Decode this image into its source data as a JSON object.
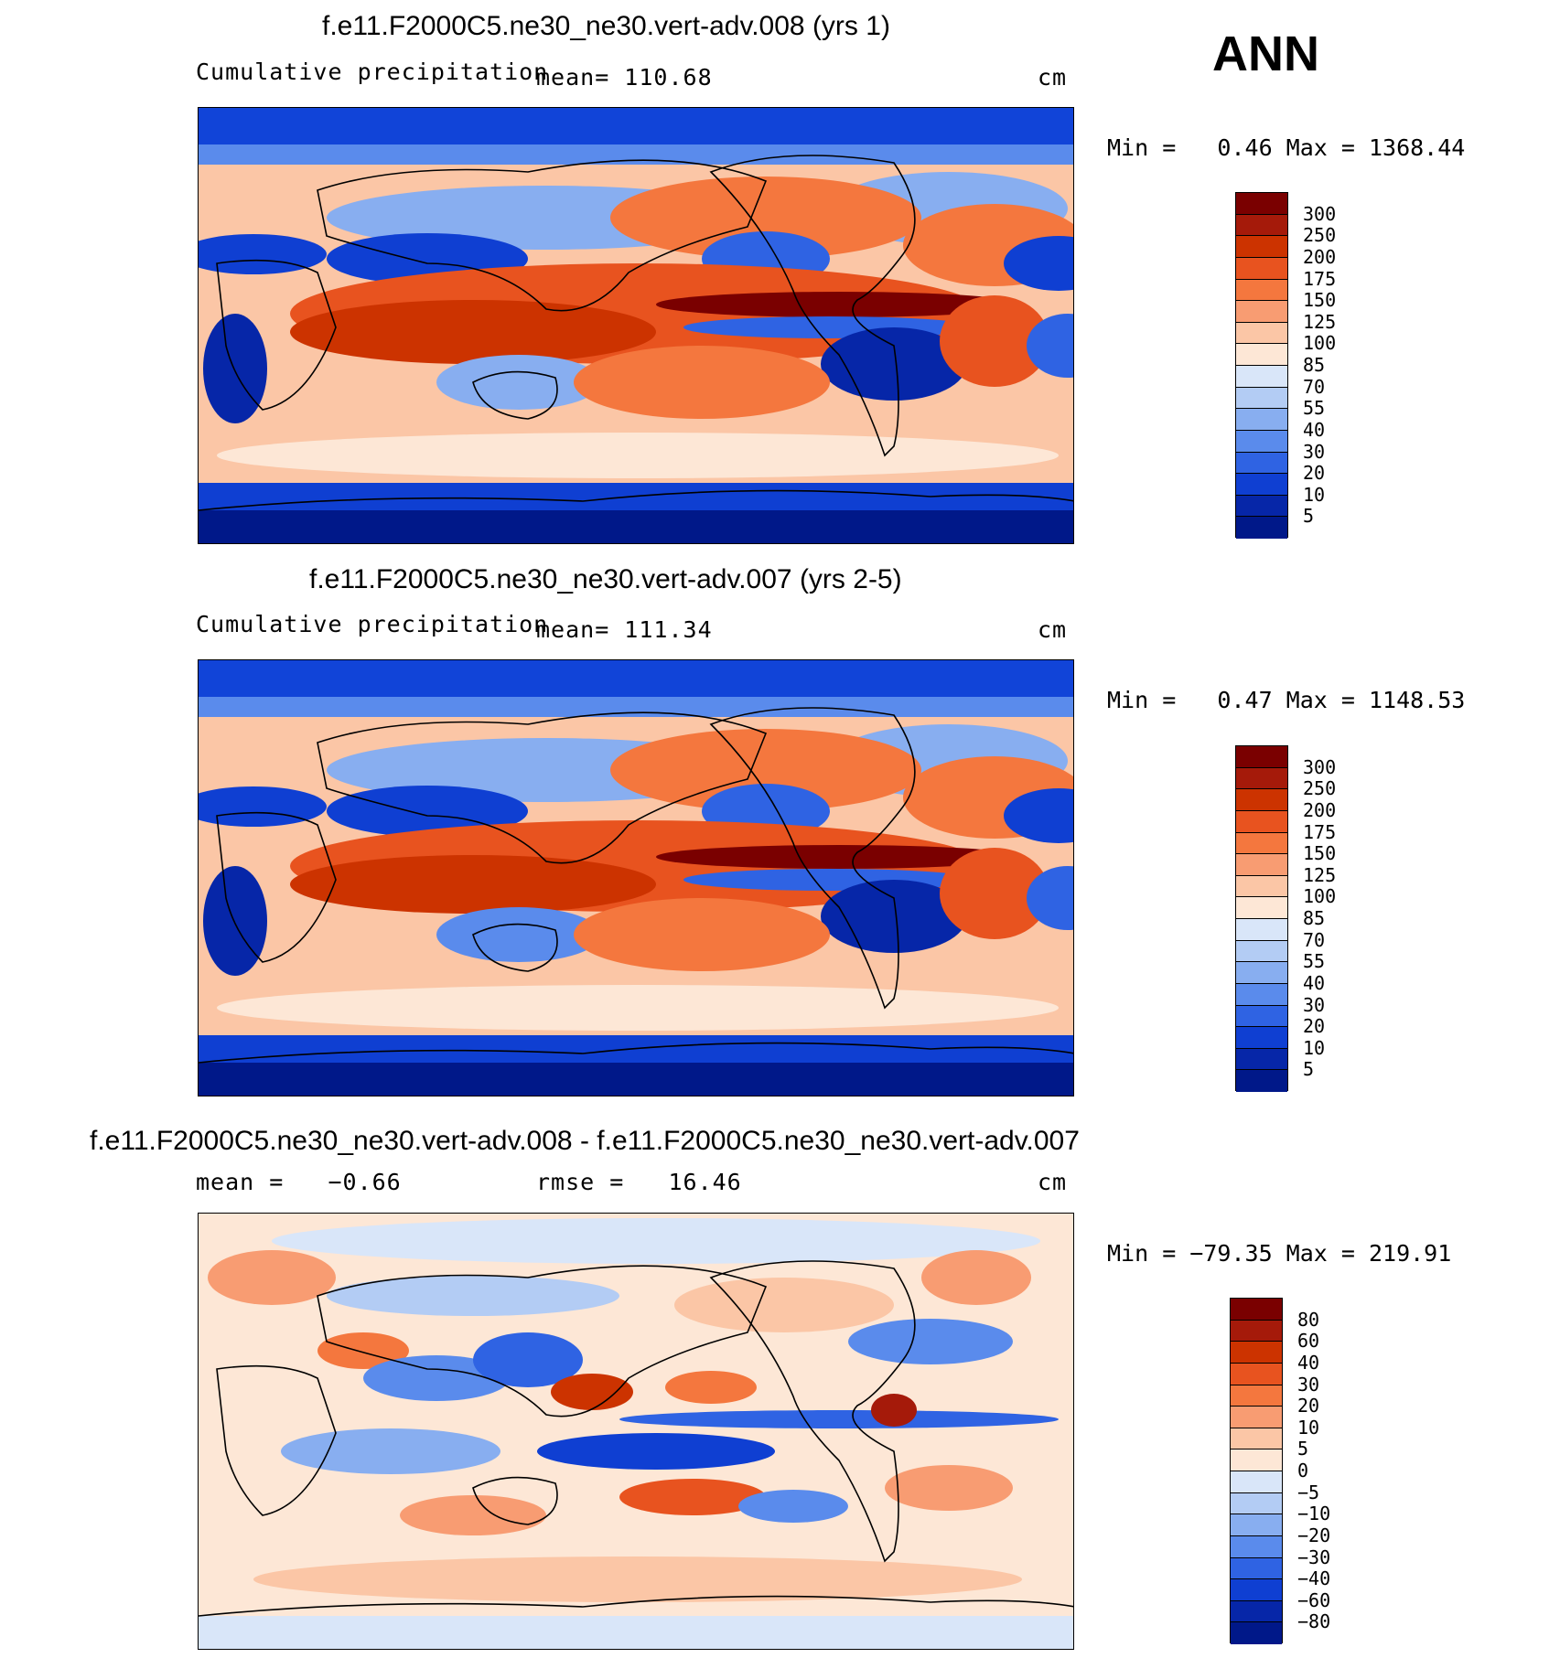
{
  "season": "ANN",
  "panels": [
    {
      "title": "f.e11.F2000C5.ne30_ne30.vert-adv.008 (yrs 1)",
      "left_label": "Cumulative precipitation",
      "center_label": "mean= 110.68",
      "right_label": "cm",
      "minmax": "Min =   0.46 Max = 1368.44",
      "colorbar_labels": [
        "300",
        "250",
        "200",
        "175",
        "150",
        "125",
        "100",
        "85",
        "70",
        "55",
        "40",
        "30",
        "20",
        "10",
        "5"
      ],
      "colors": [
        "#7a0000",
        "#a51a0a",
        "#cc3300",
        "#e8531f",
        "#f4773e",
        "#f89c72",
        "#fbc6a6",
        "#fde7d6",
        "#d9e6f9",
        "#b3ccf4",
        "#88aef0",
        "#5a8bec",
        "#2f63e3",
        "#0f3fd2",
        "#0626a8",
        "#001889"
      ]
    },
    {
      "title": "f.e11.F2000C5.ne30_ne30.vert-adv.007 (yrs 2-5)",
      "left_label": "Cumulative precipitation",
      "center_label": "mean= 111.34",
      "right_label": "cm",
      "minmax": "Min =   0.47 Max = 1148.53",
      "colorbar_labels": [
        "300",
        "250",
        "200",
        "175",
        "150",
        "125",
        "100",
        "85",
        "70",
        "55",
        "40",
        "30",
        "20",
        "10",
        "5"
      ],
      "colors": [
        "#7a0000",
        "#a51a0a",
        "#cc3300",
        "#e8531f",
        "#f4773e",
        "#f89c72",
        "#fbc6a6",
        "#fde7d6",
        "#d9e6f9",
        "#b3ccf4",
        "#88aef0",
        "#5a8bec",
        "#2f63e3",
        "#0f3fd2",
        "#0626a8",
        "#001889"
      ]
    },
    {
      "title": "f.e11.F2000C5.ne30_ne30.vert-adv.008 - f.e11.F2000C5.ne30_ne30.vert-adv.007",
      "left_label": "mean =   −0.66",
      "center_label": "rmse =   16.46",
      "right_label": "cm",
      "minmax": "Min = −79.35 Max = 219.91",
      "colorbar_labels": [
        "80",
        "60",
        "40",
        "30",
        "20",
        "10",
        "5",
        "0",
        "−5",
        "−10",
        "−20",
        "−30",
        "−40",
        "−60",
        "−80"
      ],
      "colors": [
        "#7a0000",
        "#a51a0a",
        "#cc3300",
        "#e8531f",
        "#f4773e",
        "#f89c72",
        "#fbc6a6",
        "#fde7d6",
        "#d9e6f9",
        "#b3ccf4",
        "#88aef0",
        "#5a8bec",
        "#2f63e3",
        "#0f3fd2",
        "#0626a8",
        "#001889"
      ]
    }
  ]
}
